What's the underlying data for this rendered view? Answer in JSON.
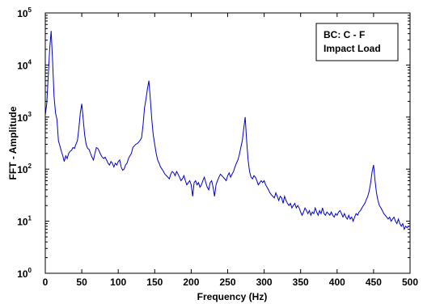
{
  "chart_data": {
    "type": "line",
    "xlabel": "Frequency (Hz)",
    "ylabel": "FFT - Amplitude",
    "xlim": [
      0,
      500
    ],
    "ylim": [
      1,
      100000
    ],
    "yscale": "log",
    "grid": false,
    "x_ticks": [
      0,
      50,
      100,
      150,
      200,
      250,
      300,
      350,
      400,
      450,
      500
    ],
    "x_tick_labels": [
      "0",
      "50",
      "100",
      "150",
      "200",
      "250",
      "300",
      "350",
      "400",
      "450",
      "500"
    ],
    "y_ticks": [
      {
        "base": "10",
        "exp": "0",
        "value": 1
      },
      {
        "base": "10",
        "exp": "1",
        "value": 10
      },
      {
        "base": "10",
        "exp": "2",
        "value": 100
      },
      {
        "base": "10",
        "exp": "3",
        "value": 1000
      },
      {
        "base": "10",
        "exp": "4",
        "value": 10000
      },
      {
        "base": "10",
        "exp": "5",
        "value": 100000
      }
    ],
    "legend": {
      "position": "top-right",
      "lines": [
        "BC: C - F",
        "Impact Load"
      ]
    },
    "series": [
      {
        "color": "#0000cc",
        "points": [
          [
            0,
            1100
          ],
          [
            2,
            1800
          ],
          [
            4,
            6000
          ],
          [
            6,
            20000
          ],
          [
            8,
            45000
          ],
          [
            10,
            12000
          ],
          [
            12,
            2500
          ],
          [
            14,
            1200
          ],
          [
            16,
            900
          ],
          [
            18,
            350
          ],
          [
            20,
            280
          ],
          [
            22,
            220
          ],
          [
            24,
            180
          ],
          [
            26,
            140
          ],
          [
            28,
            180
          ],
          [
            30,
            160
          ],
          [
            32,
            200
          ],
          [
            34,
            220
          ],
          [
            36,
            230
          ],
          [
            38,
            260
          ],
          [
            40,
            250
          ],
          [
            42,
            300
          ],
          [
            44,
            350
          ],
          [
            46,
            600
          ],
          [
            48,
            1200
          ],
          [
            50,
            1800
          ],
          [
            52,
            900
          ],
          [
            54,
            450
          ],
          [
            56,
            300
          ],
          [
            58,
            250
          ],
          [
            60,
            240
          ],
          [
            62,
            200
          ],
          [
            64,
            170
          ],
          [
            66,
            150
          ],
          [
            68,
            200
          ],
          [
            70,
            260
          ],
          [
            72,
            250
          ],
          [
            74,
            220
          ],
          [
            76,
            190
          ],
          [
            78,
            170
          ],
          [
            80,
            160
          ],
          [
            82,
            170
          ],
          [
            84,
            150
          ],
          [
            86,
            130
          ],
          [
            88,
            120
          ],
          [
            90,
            140
          ],
          [
            92,
            130
          ],
          [
            94,
            110
          ],
          [
            96,
            130
          ],
          [
            98,
            120
          ],
          [
            100,
            140
          ],
          [
            102,
            150
          ],
          [
            104,
            110
          ],
          [
            106,
            95
          ],
          [
            108,
            100
          ],
          [
            110,
            120
          ],
          [
            112,
            130
          ],
          [
            114,
            160
          ],
          [
            116,
            180
          ],
          [
            118,
            200
          ],
          [
            120,
            260
          ],
          [
            122,
            280
          ],
          [
            124,
            300
          ],
          [
            126,
            310
          ],
          [
            128,
            330
          ],
          [
            130,
            360
          ],
          [
            132,
            400
          ],
          [
            134,
            700
          ],
          [
            136,
            1500
          ],
          [
            138,
            2200
          ],
          [
            140,
            3500
          ],
          [
            142,
            5000
          ],
          [
            144,
            2200
          ],
          [
            146,
            900
          ],
          [
            148,
            450
          ],
          [
            150,
            300
          ],
          [
            152,
            200
          ],
          [
            154,
            150
          ],
          [
            156,
            130
          ],
          [
            158,
            110
          ],
          [
            160,
            100
          ],
          [
            162,
            90
          ],
          [
            164,
            80
          ],
          [
            166,
            75
          ],
          [
            168,
            70
          ],
          [
            170,
            65
          ],
          [
            172,
            80
          ],
          [
            174,
            90
          ],
          [
            176,
            85
          ],
          [
            178,
            75
          ],
          [
            180,
            90
          ],
          [
            182,
            80
          ],
          [
            184,
            70
          ],
          [
            186,
            60
          ],
          [
            188,
            65
          ],
          [
            190,
            75
          ],
          [
            192,
            60
          ],
          [
            194,
            50
          ],
          [
            196,
            55
          ],
          [
            198,
            60
          ],
          [
            200,
            50
          ],
          [
            202,
            30
          ],
          [
            204,
            55
          ],
          [
            206,
            60
          ],
          [
            208,
            50
          ],
          [
            210,
            55
          ],
          [
            212,
            45
          ],
          [
            214,
            50
          ],
          [
            216,
            60
          ],
          [
            218,
            70
          ],
          [
            220,
            55
          ],
          [
            222,
            45
          ],
          [
            224,
            40
          ],
          [
            226,
            55
          ],
          [
            228,
            60
          ],
          [
            230,
            45
          ],
          [
            232,
            30
          ],
          [
            234,
            50
          ],
          [
            236,
            60
          ],
          [
            238,
            70
          ],
          [
            240,
            80
          ],
          [
            242,
            75
          ],
          [
            244,
            70
          ],
          [
            246,
            65
          ],
          [
            248,
            60
          ],
          [
            250,
            75
          ],
          [
            252,
            85
          ],
          [
            254,
            70
          ],
          [
            256,
            80
          ],
          [
            258,
            90
          ],
          [
            260,
            110
          ],
          [
            262,
            130
          ],
          [
            264,
            150
          ],
          [
            266,
            190
          ],
          [
            268,
            260
          ],
          [
            270,
            350
          ],
          [
            272,
            600
          ],
          [
            274,
            1000
          ],
          [
            276,
            350
          ],
          [
            278,
            150
          ],
          [
            280,
            90
          ],
          [
            282,
            70
          ],
          [
            284,
            65
          ],
          [
            286,
            75
          ],
          [
            288,
            70
          ],
          [
            290,
            60
          ],
          [
            292,
            50
          ],
          [
            294,
            55
          ],
          [
            296,
            60
          ],
          [
            298,
            55
          ],
          [
            300,
            60
          ],
          [
            302,
            50
          ],
          [
            304,
            45
          ],
          [
            306,
            40
          ],
          [
            308,
            35
          ],
          [
            310,
            32
          ],
          [
            312,
            30
          ],
          [
            314,
            28
          ],
          [
            316,
            35
          ],
          [
            318,
            30
          ],
          [
            320,
            25
          ],
          [
            322,
            30
          ],
          [
            324,
            28
          ],
          [
            326,
            22
          ],
          [
            328,
            30
          ],
          [
            330,
            25
          ],
          [
            332,
            22
          ],
          [
            334,
            20
          ],
          [
            336,
            22
          ],
          [
            338,
            18
          ],
          [
            340,
            20
          ],
          [
            342,
            22
          ],
          [
            344,
            18
          ],
          [
            346,
            20
          ],
          [
            348,
            18
          ],
          [
            350,
            15
          ],
          [
            352,
            13
          ],
          [
            354,
            15
          ],
          [
            356,
            18
          ],
          [
            358,
            16
          ],
          [
            360,
            14
          ],
          [
            362,
            16
          ],
          [
            364,
            13
          ],
          [
            366,
            15
          ],
          [
            368,
            14
          ],
          [
            370,
            18
          ],
          [
            372,
            15
          ],
          [
            374,
            13
          ],
          [
            376,
            16
          ],
          [
            378,
            14
          ],
          [
            380,
            18
          ],
          [
            382,
            14
          ],
          [
            384,
            13
          ],
          [
            386,
            15
          ],
          [
            388,
            14
          ],
          [
            390,
            13
          ],
          [
            392,
            15
          ],
          [
            394,
            13
          ],
          [
            396,
            12
          ],
          [
            398,
            14
          ],
          [
            400,
            13
          ],
          [
            402,
            15
          ],
          [
            404,
            16
          ],
          [
            406,
            14
          ],
          [
            408,
            12
          ],
          [
            410,
            14
          ],
          [
            412,
            12
          ],
          [
            414,
            11
          ],
          [
            416,
            13
          ],
          [
            418,
            11
          ],
          [
            420,
            12
          ],
          [
            422,
            10
          ],
          [
            424,
            12
          ],
          [
            426,
            14
          ],
          [
            428,
            13
          ],
          [
            430,
            15
          ],
          [
            432,
            16
          ],
          [
            434,
            18
          ],
          [
            436,
            20
          ],
          [
            438,
            22
          ],
          [
            440,
            26
          ],
          [
            442,
            30
          ],
          [
            444,
            38
          ],
          [
            446,
            55
          ],
          [
            448,
            90
          ],
          [
            450,
            120
          ],
          [
            452,
            60
          ],
          [
            454,
            35
          ],
          [
            456,
            25
          ],
          [
            458,
            20
          ],
          [
            460,
            18
          ],
          [
            462,
            16
          ],
          [
            464,
            14
          ],
          [
            466,
            13
          ],
          [
            468,
            12
          ],
          [
            470,
            11
          ],
          [
            472,
            12
          ],
          [
            474,
            10
          ],
          [
            476,
            11
          ],
          [
            478,
            12
          ],
          [
            480,
            10
          ],
          [
            482,
            9
          ],
          [
            484,
            11
          ],
          [
            486,
            9
          ],
          [
            488,
            8
          ],
          [
            490,
            9
          ],
          [
            492,
            7
          ],
          [
            494,
            8
          ],
          [
            496,
            7.5
          ],
          [
            498,
            8
          ],
          [
            500,
            8
          ]
        ]
      }
    ]
  }
}
